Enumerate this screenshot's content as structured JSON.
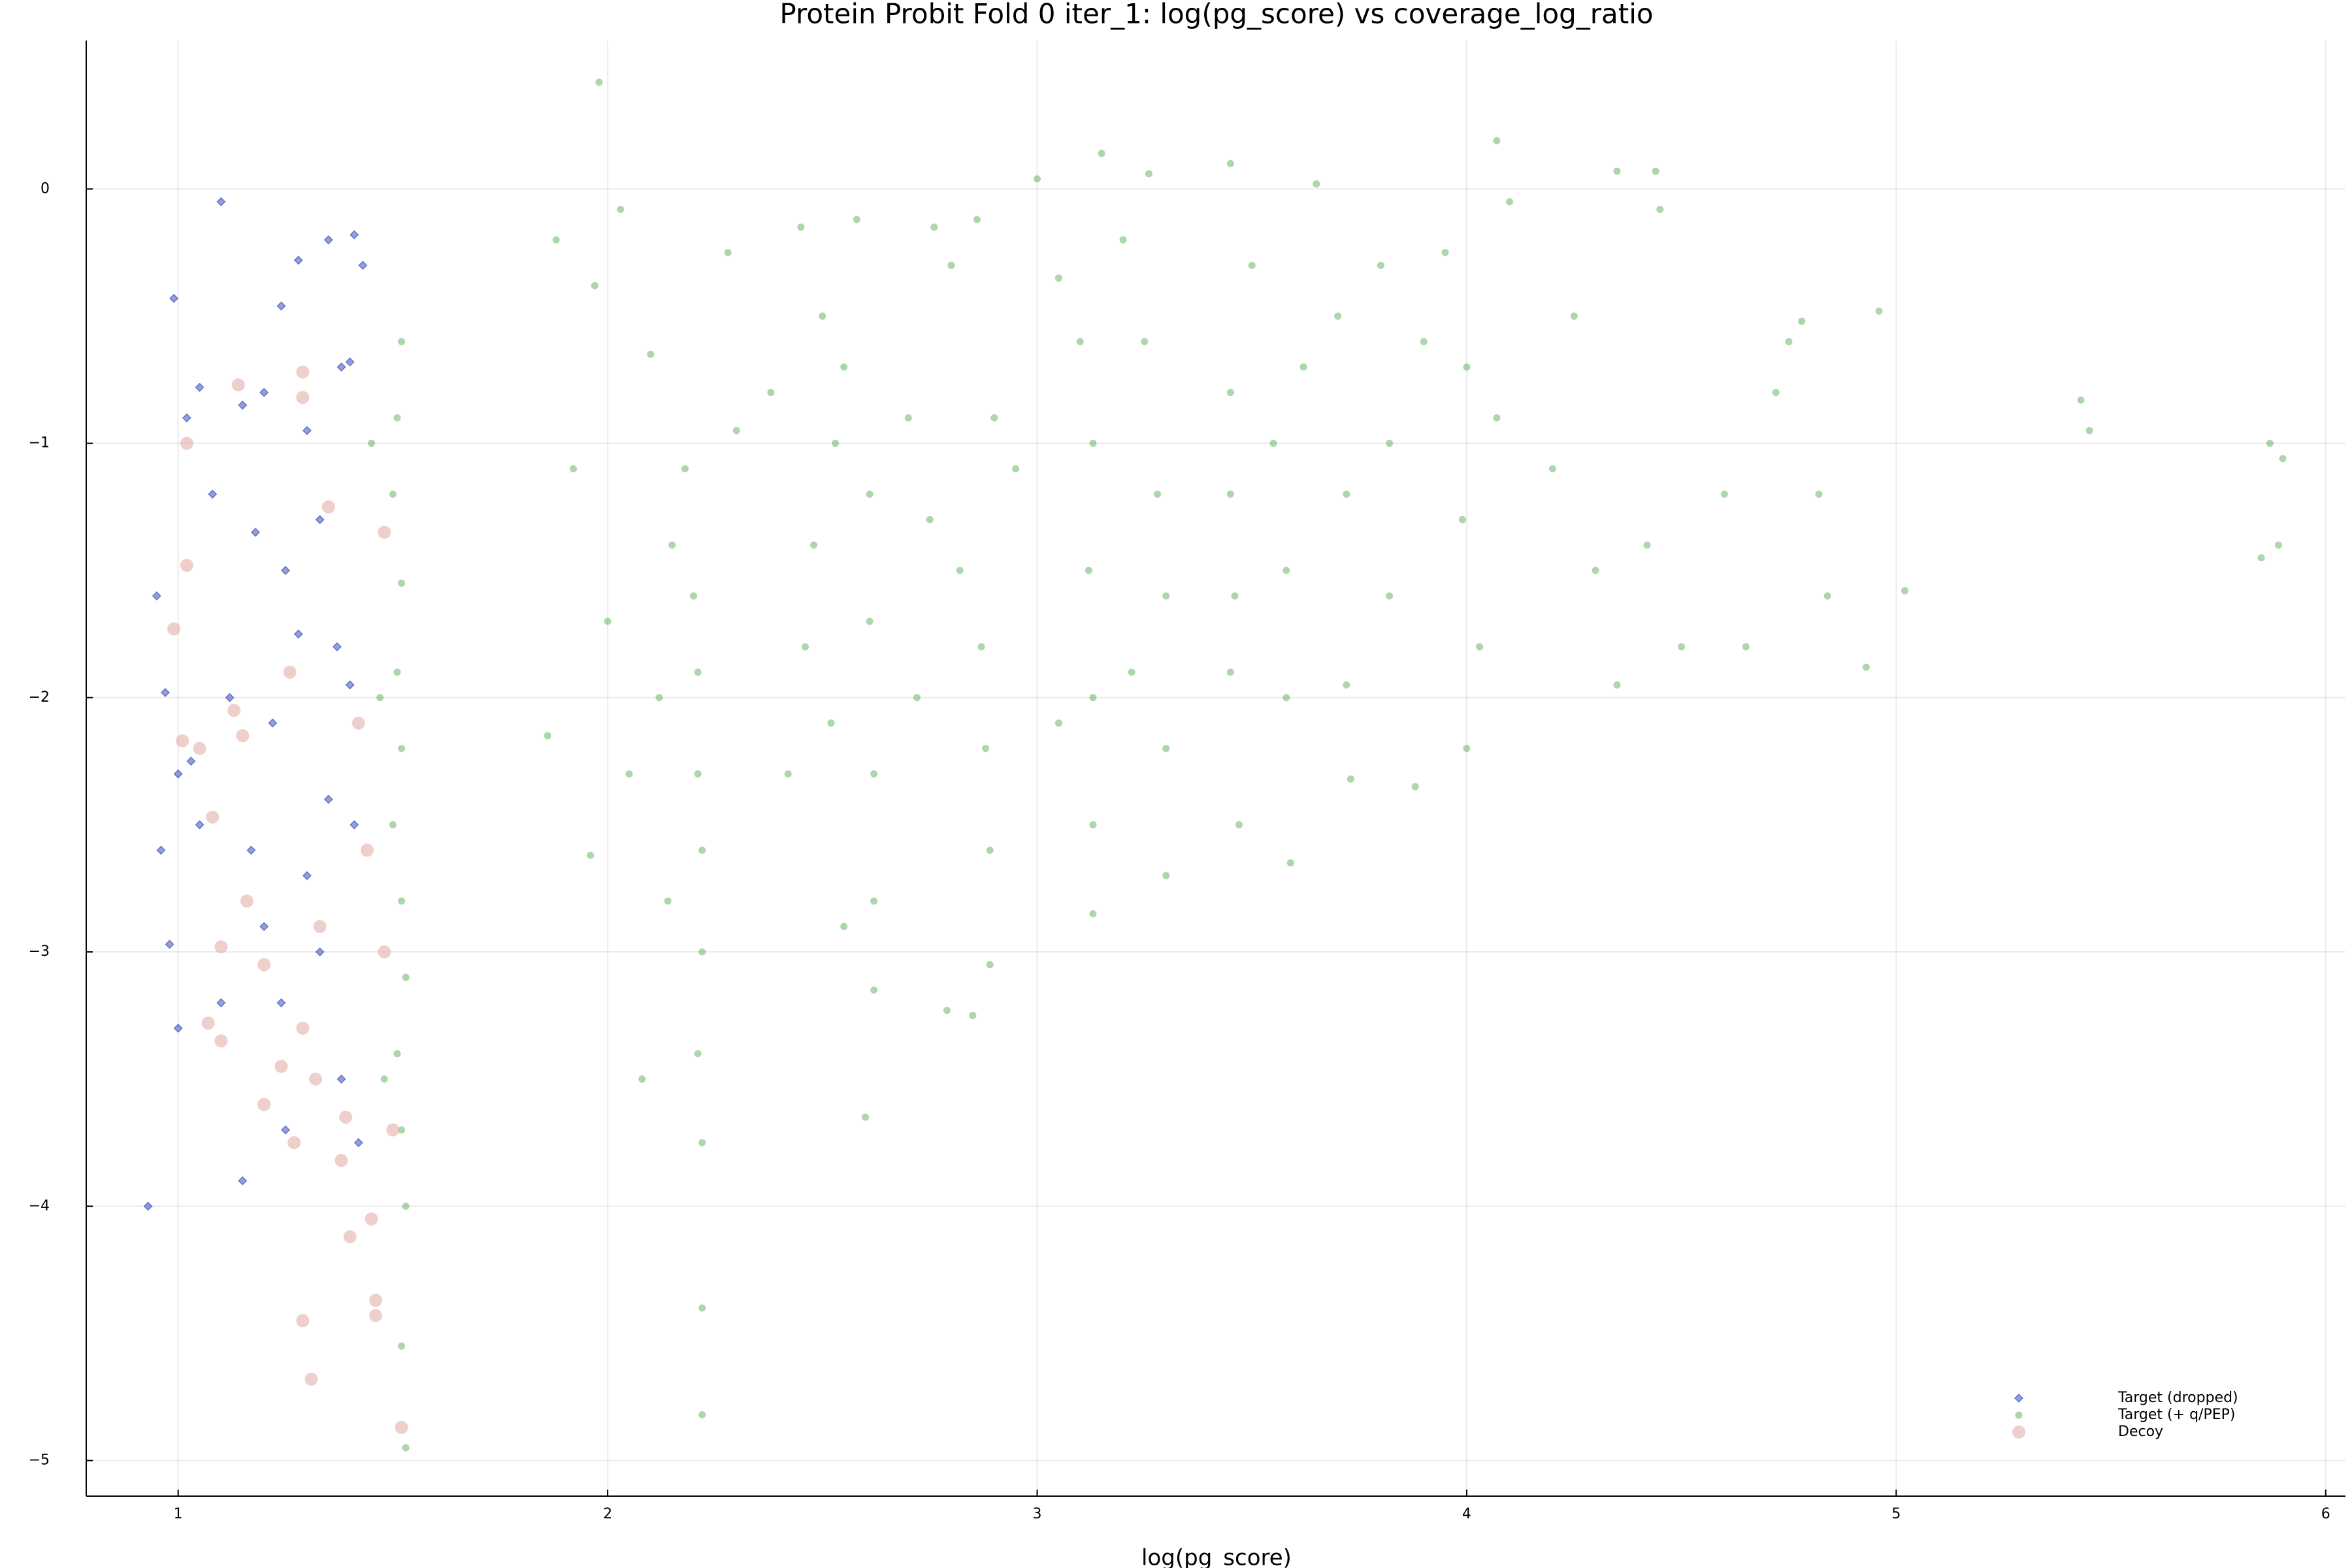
{
  "chart_data": {
    "type": "scatter",
    "title": "Protein Probit Fold 0 iter_1: log(pg_score) vs coverage_log_ratio",
    "xlabel": "log(pg_score)",
    "xlim": [
      0.786,
      6.046
    ],
    "ylim": [
      -5.14,
      0.584
    ],
    "xticks": [
      1,
      2,
      3,
      4,
      5,
      6
    ],
    "yticks": [
      {
        "value": -5,
        "label": "−5"
      },
      {
        "value": -4,
        "label": "−4"
      },
      {
        "value": -3,
        "label": "−3"
      },
      {
        "value": -2,
        "label": "−2"
      },
      {
        "value": -1,
        "label": "−1"
      },
      0
    ],
    "grid": true,
    "legend": "bottom right",
    "series": [
      {
        "name": "Target (dropped)",
        "color": "#2a3fb4",
        "marker": "diamond",
        "x": [
          0.93,
          1.1,
          0.99,
          1.35,
          1.41,
          1.28,
          1.24,
          1.43,
          1.02,
          1.05,
          1.15,
          1.2,
          1.3,
          1.38,
          1.4,
          1.33,
          1.25,
          1.18,
          1.08,
          0.95,
          0.97,
          1.0,
          1.03,
          1.12,
          1.22,
          1.35,
          1.41,
          1.3,
          1.2,
          1.1,
          0.98,
          1.0,
          1.15,
          1.25,
          1.38,
          1.42,
          1.37,
          1.4,
          1.28,
          1.17,
          1.05,
          0.96,
          1.33,
          1.24
        ],
        "y": [
          -4.0,
          -0.05,
          -0.43,
          -0.2,
          -0.18,
          -0.28,
          -0.46,
          -0.3,
          -0.9,
          -0.78,
          -0.85,
          -0.8,
          -0.95,
          -0.7,
          -0.68,
          -1.3,
          -1.5,
          -1.35,
          -1.2,
          -1.6,
          -1.98,
          -2.3,
          -2.25,
          -2.0,
          -2.1,
          -2.4,
          -2.5,
          -2.7,
          -2.9,
          -3.2,
          -2.97,
          -3.3,
          -3.9,
          -3.7,
          -3.5,
          -3.75,
          -1.8,
          -1.95,
          -1.75,
          -2.6,
          -2.5,
          -2.6,
          -3.0,
          -3.2
        ]
      },
      {
        "name": "Target (+ q/PEP)",
        "color": "#2d9a2d",
        "marker": "circle",
        "x": [
          1.52,
          1.51,
          1.5,
          1.52,
          1.51,
          1.52,
          1.5,
          1.52,
          1.53,
          1.51,
          1.52,
          1.53,
          1.52,
          1.53,
          1.45,
          1.47,
          1.48,
          1.88,
          1.98,
          2.03,
          1.97,
          1.92,
          2.0,
          2.05,
          1.96,
          1.86,
          2.1,
          2.15,
          2.18,
          2.2,
          2.21,
          2.21,
          2.22,
          2.22,
          2.21,
          2.22,
          2.22,
          2.22,
          2.12,
          2.08,
          2.14,
          2.28,
          2.3,
          2.45,
          2.5,
          2.55,
          2.58,
          2.48,
          2.52,
          2.46,
          2.55,
          2.61,
          2.61,
          2.62,
          2.62,
          2.62,
          2.6,
          2.38,
          2.42,
          2.53,
          2.76,
          2.86,
          2.8,
          2.7,
          2.75,
          2.82,
          2.87,
          2.88,
          2.89,
          2.89,
          2.85,
          2.79,
          2.72,
          2.9,
          3.0,
          2.95,
          3.05,
          3.1,
          3.15,
          3.13,
          3.12,
          3.13,
          3.13,
          3.13,
          3.05,
          3.2,
          3.25,
          3.28,
          3.3,
          3.3,
          3.3,
          3.26,
          3.22,
          3.45,
          3.45,
          3.45,
          3.46,
          3.45,
          3.47,
          3.5,
          3.55,
          3.58,
          3.58,
          3.59,
          3.65,
          3.62,
          3.7,
          3.72,
          3.72,
          3.73,
          3.8,
          3.82,
          3.82,
          3.88,
          3.95,
          4.0,
          3.99,
          4.0,
          4.03,
          4.07,
          4.07,
          4.1,
          3.9,
          4.2,
          4.25,
          4.3,
          4.35,
          4.35,
          4.44,
          4.45,
          4.42,
          4.5,
          4.6,
          4.65,
          4.72,
          4.75,
          4.78,
          4.82,
          4.84,
          4.93,
          4.96,
          5.02,
          5.43,
          5.45,
          5.85,
          5.87,
          5.89,
          5.9
        ],
        "y": [
          -0.6,
          -0.9,
          -1.2,
          -1.55,
          -1.9,
          -2.2,
          -2.5,
          -2.8,
          -3.1,
          -3.4,
          -3.7,
          -4.0,
          -4.55,
          -4.95,
          -1.0,
          -2.0,
          -3.5,
          -0.2,
          0.42,
          -0.08,
          -0.38,
          -1.1,
          -1.7,
          -2.3,
          -2.62,
          -2.15,
          -0.65,
          -1.4,
          -1.1,
          -1.6,
          -1.9,
          -2.3,
          -2.6,
          -3.0,
          -3.4,
          -3.75,
          -4.4,
          -4.82,
          -2.0,
          -3.5,
          -2.8,
          -0.25,
          -0.95,
          -0.15,
          -0.5,
          -0.7,
          -0.12,
          -1.4,
          -2.1,
          -1.8,
          -2.9,
          -1.2,
          -1.7,
          -2.3,
          -2.8,
          -3.15,
          -3.65,
          -0.8,
          -2.3,
          -1.0,
          -0.15,
          -0.12,
          -0.3,
          -0.9,
          -1.3,
          -1.5,
          -1.8,
          -2.2,
          -2.6,
          -3.05,
          -3.25,
          -3.23,
          -2.0,
          -0.9,
          0.04,
          -1.1,
          -0.35,
          -0.6,
          0.14,
          -1.0,
          -1.5,
          -2.0,
          -2.5,
          -2.85,
          -2.1,
          -0.2,
          -0.6,
          -1.2,
          -1.6,
          -2.2,
          -2.7,
          0.06,
          -1.9,
          0.1,
          -0.8,
          -1.2,
          -1.6,
          -1.9,
          -2.5,
          -0.3,
          -1.0,
          -1.5,
          -2.0,
          -2.65,
          0.02,
          -0.7,
          -0.5,
          -1.2,
          -1.95,
          -2.32,
          -0.3,
          -1.0,
          -1.6,
          -2.35,
          -0.25,
          -0.7,
          -1.3,
          -2.2,
          -1.8,
          0.19,
          -0.9,
          -0.05,
          -0.6,
          -1.1,
          -0.5,
          -1.5,
          0.07,
          -1.95,
          0.07,
          -0.08,
          -1.4,
          -1.8,
          -1.2,
          -1.8,
          -0.8,
          -0.6,
          -0.52,
          -1.2,
          -1.6,
          -1.88,
          -0.48,
          -1.58,
          -0.83,
          -0.95,
          -1.45,
          -1.0,
          -1.4,
          -1.06
        ]
      },
      {
        "name": "Decoy",
        "color": "#e0a8a2",
        "marker": "circle-large",
        "x": [
          1.02,
          1.14,
          1.29,
          1.29,
          1.02,
          0.99,
          1.05,
          1.01,
          1.13,
          1.15,
          1.08,
          1.16,
          1.1,
          1.07,
          1.1,
          1.2,
          1.24,
          1.29,
          1.2,
          1.27,
          1.32,
          1.38,
          1.39,
          1.4,
          1.45,
          1.29,
          1.31,
          1.46,
          1.46,
          1.52,
          1.35,
          1.42,
          1.48,
          1.33,
          1.44,
          1.26,
          1.48,
          1.5
        ],
        "y": [
          -1.0,
          -0.77,
          -0.72,
          -0.82,
          -1.48,
          -1.73,
          -2.2,
          -2.17,
          -2.05,
          -2.15,
          -2.47,
          -2.8,
          -2.98,
          -3.28,
          -3.35,
          -3.05,
          -3.45,
          -3.3,
          -3.6,
          -3.75,
          -3.5,
          -3.82,
          -3.65,
          -4.12,
          -4.05,
          -4.45,
          -4.68,
          -4.37,
          -4.43,
          -4.87,
          -1.25,
          -2.1,
          -1.35,
          -2.9,
          -2.6,
          -1.9,
          -3.0,
          -3.7
        ]
      }
    ]
  }
}
